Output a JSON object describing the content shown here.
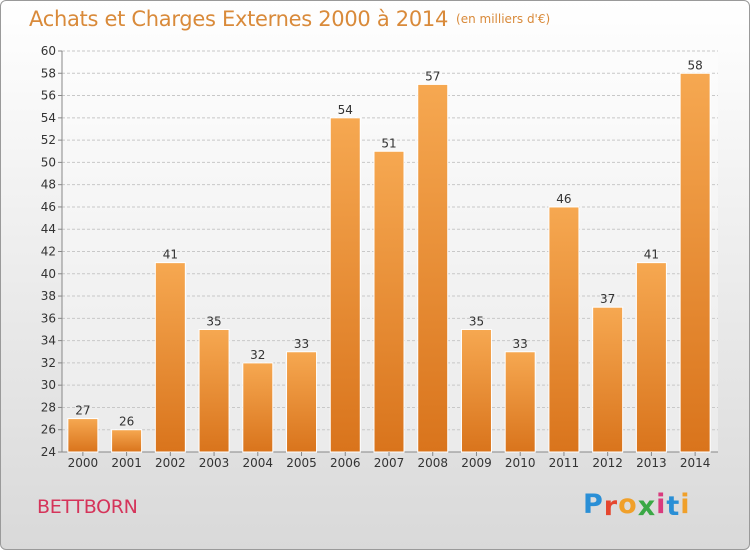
{
  "header": {
    "title": "Achats et Charges Externes 2000 à 2014",
    "subtitle": "(en milliers d'€)"
  },
  "footer": {
    "place": "BETTBORN",
    "brand_letters": [
      "P",
      "r",
      "o",
      "x",
      "i",
      "t",
      "i"
    ],
    "brand_colors": [
      "#2a8fd6",
      "#e5462e",
      "#f0a02a",
      "#3aa845",
      "#d93a7d",
      "#2a8fd6",
      "#f0a02a"
    ]
  },
  "colors": {
    "bar_top": "#f6a851",
    "bar_bottom": "#d9741c",
    "bar_edge": "#ffffff",
    "grid": "#c8c8c8",
    "text": "#333333"
  },
  "chart_data": {
    "type": "bar",
    "categories": [
      "2000",
      "2001",
      "2002",
      "2003",
      "2004",
      "2005",
      "2006",
      "2007",
      "2008",
      "2009",
      "2010",
      "2011",
      "2012",
      "2013",
      "2014"
    ],
    "values": [
      27,
      26,
      41,
      35,
      32,
      33,
      54,
      51,
      57,
      35,
      33,
      46,
      37,
      41,
      58
    ],
    "ylim": [
      24,
      60
    ],
    "ytick_step": 2,
    "grid": true,
    "data_labels": true
  }
}
